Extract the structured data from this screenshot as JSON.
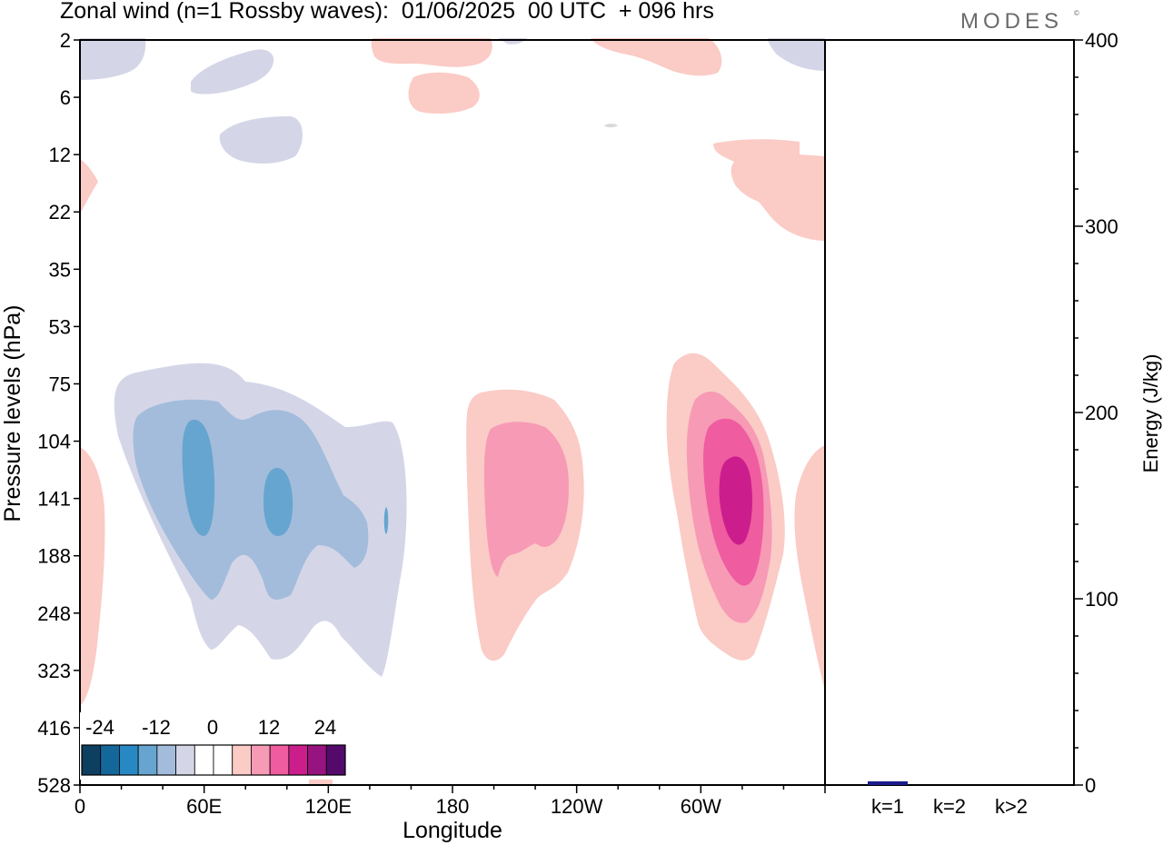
{
  "title": "Zonal wind (n=1 Rossby waves):  01/06/2025  00 UTC  + 096 hrs",
  "brand": "MODES",
  "brand_mark": "©",
  "chart_data": [
    {
      "type": "contour",
      "xlabel": "Longitude",
      "ylabel": "Pressure levels (hPa)",
      "x_ticks": [
        "0",
        "60E",
        "120E",
        "180",
        "120W",
        "60W"
      ],
      "x_tick_degrees": [
        0,
        60,
        120,
        180,
        240,
        300
      ],
      "x_range_degrees": [
        0,
        360
      ],
      "y_ticks": [
        "2",
        "6",
        "12",
        "22",
        "35",
        "53",
        "75",
        "104",
        "141",
        "188",
        "248",
        "323",
        "416",
        "528"
      ],
      "y_order": "top-to-bottom",
      "colorbar": {
        "labels": [
          "-24",
          "-12",
          "0",
          "12",
          "24"
        ],
        "colors": [
          "#0d3f60",
          "#13679b",
          "#2888c4",
          "#66a5cf",
          "#a3bcdb",
          "#d4d6e8",
          "#ffffff",
          "#ffffff",
          "#fbcbc6",
          "#f79ab5",
          "#ef5ca0",
          "#cb1e8c",
          "#97137f",
          "#540a6b"
        ]
      },
      "features": [
        {
          "sign": "negative",
          "peak": -12,
          "longitude": 40,
          "pressure_hPa": 141
        },
        {
          "sign": "negative",
          "peak": -12,
          "longitude": 80,
          "pressure_hPa": 141
        },
        {
          "sign": "positive",
          "peak": 10,
          "longitude": 200,
          "pressure_hPa": 141
        },
        {
          "sign": "positive",
          "peak": 16,
          "longitude": 300,
          "pressure_hPa": 141
        }
      ]
    },
    {
      "type": "bar",
      "categories": [
        "k=1",
        "k=2",
        "k>2"
      ],
      "values": [
        2,
        0.3,
        0.5
      ],
      "ylabel": "Energy (J/kg)",
      "ylim": [
        0,
        400
      ],
      "y_ticks": [
        "0",
        "100",
        "200",
        "300",
        "400"
      ],
      "colors": {
        "k=1": "#1a1a8c",
        "k=2": "#000000",
        "k>2": "#000000"
      }
    }
  ]
}
